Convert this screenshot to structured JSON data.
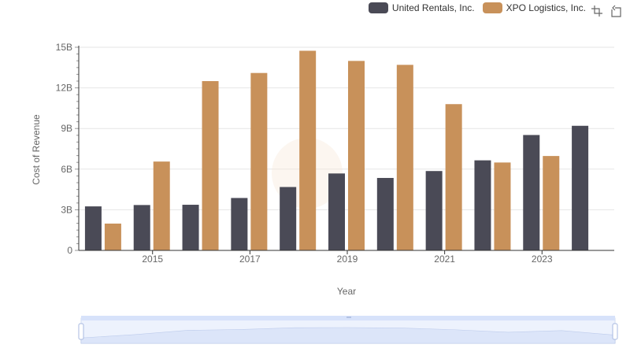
{
  "chart_data": {
    "type": "bar",
    "xlabel": "Year",
    "ylabel": "Cost of Revenue",
    "categories": [
      "2014",
      "2015",
      "2016",
      "2017",
      "2018",
      "2019",
      "2020",
      "2021",
      "2022",
      "2023",
      "2024"
    ],
    "x_tick_labels": [
      "2015",
      "2017",
      "2019",
      "2021",
      "2023"
    ],
    "y_tick_labels": [
      "0",
      "3B",
      "6B",
      "9B",
      "12B",
      "15B"
    ],
    "ylim": [
      0,
      15000000000
    ],
    "grid": true,
    "legend_position": "top-right",
    "series": [
      {
        "name": "United Rentals, Inc.",
        "color": "#4a4a56",
        "values": [
          3250000000,
          3350000000,
          3370000000,
          3870000000,
          4680000000,
          5680000000,
          5350000000,
          5860000000,
          6650000000,
          8520000000,
          9200000000
        ]
      },
      {
        "name": "XPO Logistics, Inc.",
        "color": "#c8915a",
        "values": [
          1980000000,
          6560000000,
          12500000000,
          13100000000,
          14740000000,
          13990000000,
          13700000000,
          10800000000,
          6490000000,
          6970000000,
          null
        ]
      }
    ]
  },
  "toolbox": {
    "zoom_icon": "zoom-icon",
    "restore_icon": "restore-icon"
  },
  "datazoom": {
    "start_percent": 0,
    "end_percent": 100
  }
}
